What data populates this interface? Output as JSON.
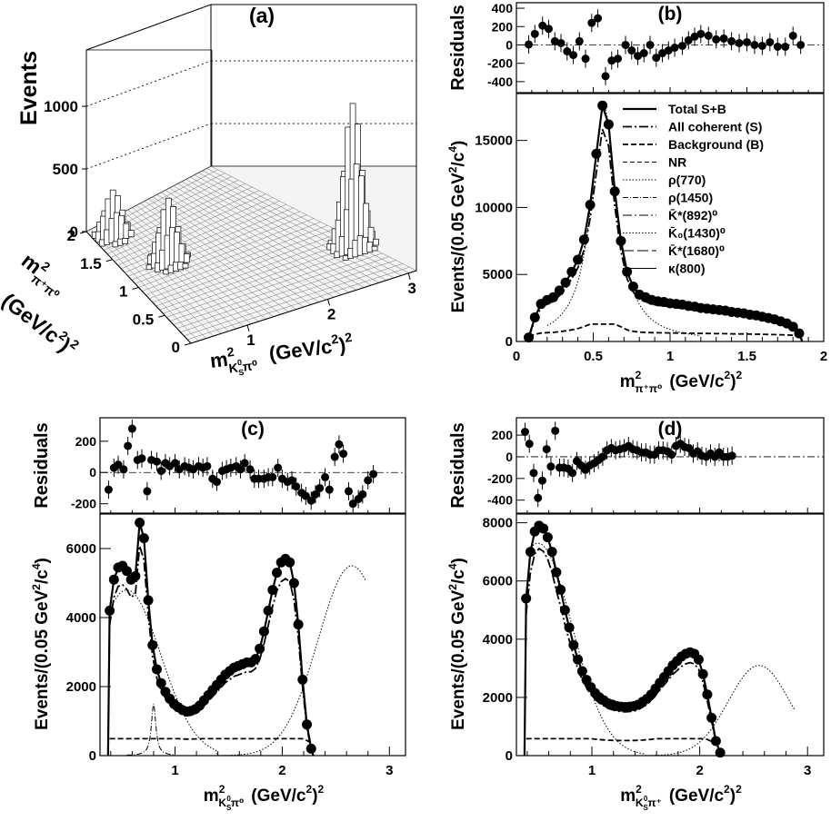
{
  "chart_data": [
    {
      "panel": "a",
      "type": "heatmap",
      "title": "(a)",
      "zlabel": "Events",
      "z_ticks": [
        "0",
        "500",
        "1000"
      ],
      "x_ticks": [
        "1",
        "2",
        "3"
      ],
      "y_ticks": [
        "0",
        "0.5",
        "1",
        "1.5",
        "2"
      ],
      "zlim": [
        0,
        1450
      ],
      "xlim": [
        0.3,
        3.1
      ],
      "ylim": [
        0,
        2
      ],
      "peaks": [
        {
          "x": 2.7,
          "y": 0.6,
          "z": 1150
        },
        {
          "x": 0.8,
          "y": 1.2,
          "z": 520
        },
        {
          "x": 0.5,
          "y": 1.8,
          "z": 380
        }
      ]
    },
    {
      "panel": "b",
      "type": "line",
      "title": "(b)",
      "x_ticks": [
        "0",
        "0.5",
        "1",
        "1.5",
        "2"
      ],
      "xlim": [
        0,
        2
      ],
      "ylim": [
        0,
        18500
      ],
      "y_ticks": [
        "0",
        "5000",
        "10000",
        "15000"
      ],
      "residuals": {
        "ylim": [
          -520,
          460
        ],
        "y_ticks": [
          "-400",
          "-200",
          "0",
          "200",
          "400"
        ],
        "points": [
          [
            0.08,
            5
          ],
          [
            0.12,
            120
          ],
          [
            0.17,
            210
          ],
          [
            0.21,
            175
          ],
          [
            0.25,
            40
          ],
          [
            0.29,
            20
          ],
          [
            0.33,
            -70
          ],
          [
            0.37,
            -110
          ],
          [
            0.41,
            40
          ],
          [
            0.45,
            -150
          ],
          [
            0.49,
            240
          ],
          [
            0.53,
            290
          ],
          [
            0.58,
            -340
          ],
          [
            0.62,
            -170
          ],
          [
            0.66,
            -150
          ],
          [
            0.71,
            0
          ],
          [
            0.75,
            -60
          ],
          [
            0.79,
            -120
          ],
          [
            0.83,
            -90
          ],
          [
            0.87,
            0
          ],
          [
            0.91,
            -140
          ],
          [
            0.95,
            -90
          ],
          [
            0.99,
            -60
          ],
          [
            1.03,
            -30
          ],
          [
            1.08,
            -10
          ],
          [
            1.12,
            50
          ],
          [
            1.16,
            90
          ],
          [
            1.2,
            120
          ],
          [
            1.25,
            100
          ],
          [
            1.3,
            60
          ],
          [
            1.35,
            70
          ],
          [
            1.4,
            40
          ],
          [
            1.45,
            20
          ],
          [
            1.5,
            30
          ],
          [
            1.55,
            0
          ],
          [
            1.6,
            -10
          ],
          [
            1.65,
            30
          ],
          [
            1.7,
            -20
          ],
          [
            1.75,
            -20
          ],
          [
            1.8,
            100
          ],
          [
            1.85,
            0
          ]
        ]
      },
      "points": [
        [
          0.08,
          300
        ],
        [
          0.12,
          1800
        ],
        [
          0.16,
          2800
        ],
        [
          0.2,
          3100
        ],
        [
          0.24,
          3300
        ],
        [
          0.28,
          3800
        ],
        [
          0.32,
          4400
        ],
        [
          0.36,
          5200
        ],
        [
          0.4,
          6100
        ],
        [
          0.44,
          7600
        ],
        [
          0.48,
          10200
        ],
        [
          0.52,
          14000
        ],
        [
          0.56,
          17600
        ],
        [
          0.6,
          16200
        ],
        [
          0.64,
          11200
        ],
        [
          0.68,
          7500
        ],
        [
          0.72,
          5200
        ],
        [
          0.76,
          4100
        ],
        [
          0.8,
          3500
        ],
        [
          0.84,
          3300
        ],
        [
          0.88,
          3100
        ],
        [
          0.92,
          3000
        ],
        [
          0.96,
          2950
        ],
        [
          1.0,
          2850
        ],
        [
          1.04,
          2800
        ],
        [
          1.08,
          2750
        ],
        [
          1.12,
          2650
        ],
        [
          1.16,
          2600
        ],
        [
          1.2,
          2500
        ],
        [
          1.24,
          2450
        ],
        [
          1.28,
          2400
        ],
        [
          1.32,
          2350
        ],
        [
          1.36,
          2300
        ],
        [
          1.4,
          2200
        ],
        [
          1.44,
          2150
        ],
        [
          1.48,
          2100
        ],
        [
          1.52,
          2000
        ],
        [
          1.56,
          1950
        ],
        [
          1.6,
          1850
        ],
        [
          1.64,
          1750
        ],
        [
          1.68,
          1650
        ],
        [
          1.72,
          1500
        ],
        [
          1.76,
          1350
        ],
        [
          1.8,
          1100
        ],
        [
          1.84,
          600
        ]
      ],
      "legend": [
        "Total S+B",
        "All coherent (S)",
        "Background (B)",
        "NR",
        "ρ(770)",
        "ρ(1450)",
        "K̄*(892)⁰",
        "K̄₀(1430)⁰",
        "K̄*(1680)⁰",
        "κ(800)"
      ]
    },
    {
      "panel": "c",
      "type": "line",
      "title": "(c)",
      "x_ticks": [
        "1",
        "2",
        "3"
      ],
      "xlim": [
        0.3,
        3.15
      ],
      "ylim": [
        0,
        7000
      ],
      "y_ticks": [
        "0",
        "2000",
        "4000",
        "6000"
      ],
      "residuals": {
        "ylim": [
          -260,
          350
        ],
        "y_ticks": [
          "-200",
          "0",
          "200"
        ],
        "points": [
          [
            0.38,
            -110
          ],
          [
            0.43,
            30
          ],
          [
            0.47,
            50
          ],
          [
            0.52,
            20
          ],
          [
            0.56,
            170
          ],
          [
            0.6,
            280
          ],
          [
            0.65,
            80
          ],
          [
            0.69,
            90
          ],
          [
            0.74,
            -120
          ],
          [
            0.78,
            80
          ],
          [
            0.83,
            70
          ],
          [
            0.87,
            10
          ],
          [
            0.91,
            60
          ],
          [
            0.95,
            40
          ],
          [
            1.0,
            60
          ],
          [
            1.04,
            20
          ],
          [
            1.09,
            40
          ],
          [
            1.13,
            30
          ],
          [
            1.17,
            20
          ],
          [
            1.22,
            40
          ],
          [
            1.26,
            30
          ],
          [
            1.3,
            40
          ],
          [
            1.35,
            -40
          ],
          [
            1.39,
            -60
          ],
          [
            1.44,
            10
          ],
          [
            1.48,
            20
          ],
          [
            1.52,
            30
          ],
          [
            1.57,
            40
          ],
          [
            1.61,
            20
          ],
          [
            1.65,
            60
          ],
          [
            1.7,
            20
          ],
          [
            1.74,
            -40
          ],
          [
            1.78,
            -40
          ],
          [
            1.83,
            -40
          ],
          [
            1.87,
            -30
          ],
          [
            1.91,
            -30
          ],
          [
            1.96,
            30
          ],
          [
            2.0,
            -40
          ],
          [
            2.05,
            -60
          ],
          [
            2.09,
            -50
          ],
          [
            2.13,
            -90
          ],
          [
            2.18,
            -130
          ],
          [
            2.22,
            -150
          ],
          [
            2.27,
            -180
          ],
          [
            2.31,
            -140
          ],
          [
            2.35,
            -100
          ],
          [
            2.4,
            -30
          ],
          [
            2.44,
            -110
          ],
          [
            2.49,
            100
          ],
          [
            2.53,
            180
          ],
          [
            2.57,
            120
          ],
          [
            2.62,
            -120
          ],
          [
            2.66,
            -200
          ],
          [
            2.71,
            -170
          ],
          [
            2.75,
            -140
          ],
          [
            2.8,
            -50
          ],
          [
            2.85,
            -10
          ]
        ]
      },
      "points": [
        [
          0.39,
          4200
        ],
        [
          0.43,
          5100
        ],
        [
          0.47,
          5450
        ],
        [
          0.51,
          5500
        ],
        [
          0.55,
          5350
        ],
        [
          0.59,
          5100
        ],
        [
          0.63,
          5200
        ],
        [
          0.67,
          6750
        ],
        [
          0.71,
          6300
        ],
        [
          0.75,
          4500
        ],
        [
          0.79,
          3200
        ],
        [
          0.83,
          2500
        ],
        [
          0.87,
          2100
        ],
        [
          0.91,
          1850
        ],
        [
          0.95,
          1650
        ],
        [
          0.99,
          1500
        ],
        [
          1.03,
          1400
        ],
        [
          1.07,
          1320
        ],
        [
          1.11,
          1280
        ],
        [
          1.15,
          1300
        ],
        [
          1.19,
          1350
        ],
        [
          1.23,
          1450
        ],
        [
          1.27,
          1600
        ],
        [
          1.31,
          1750
        ],
        [
          1.35,
          1900
        ],
        [
          1.39,
          2050
        ],
        [
          1.43,
          2200
        ],
        [
          1.47,
          2350
        ],
        [
          1.51,
          2450
        ],
        [
          1.55,
          2550
        ],
        [
          1.59,
          2600
        ],
        [
          1.63,
          2650
        ],
        [
          1.67,
          2700
        ],
        [
          1.71,
          2700
        ],
        [
          1.75,
          2800
        ],
        [
          1.79,
          3100
        ],
        [
          1.83,
          3600
        ],
        [
          1.87,
          4200
        ],
        [
          1.91,
          4800
        ],
        [
          1.95,
          5300
        ],
        [
          1.99,
          5600
        ],
        [
          2.03,
          5700
        ],
        [
          2.07,
          5600
        ],
        [
          2.11,
          5000
        ],
        [
          2.15,
          3800
        ],
        [
          2.19,
          2200
        ],
        [
          2.23,
          900
        ],
        [
          2.27,
          200
        ]
      ]
    },
    {
      "panel": "d",
      "type": "line",
      "title": "(d)",
      "x_ticks": [
        "1",
        "2",
        "3"
      ],
      "xlim": [
        0.3,
        3.15
      ],
      "ylim": [
        0,
        8300
      ],
      "y_ticks": [
        "0",
        "2000",
        "4000",
        "6000",
        "8000"
      ],
      "residuals": {
        "ylim": [
          -520,
          360
        ],
        "y_ticks": [
          "-400",
          "-200",
          "0",
          "200"
        ],
        "points": [
          [
            0.38,
            230
          ],
          [
            0.42,
            120
          ],
          [
            0.46,
            -150
          ],
          [
            0.5,
            -380
          ],
          [
            0.54,
            -220
          ],
          [
            0.58,
            70
          ],
          [
            0.62,
            -90
          ],
          [
            0.66,
            240
          ],
          [
            0.7,
            -100
          ],
          [
            0.74,
            -100
          ],
          [
            0.78,
            -110
          ],
          [
            0.82,
            -150
          ],
          [
            0.86,
            -40
          ],
          [
            0.9,
            -80
          ],
          [
            0.94,
            -120
          ],
          [
            0.98,
            -80
          ],
          [
            1.02,
            -60
          ],
          [
            1.06,
            -30
          ],
          [
            1.1,
            0
          ],
          [
            1.14,
            60
          ],
          [
            1.18,
            80
          ],
          [
            1.22,
            60
          ],
          [
            1.26,
            70
          ],
          [
            1.3,
            80
          ],
          [
            1.34,
            100
          ],
          [
            1.38,
            70
          ],
          [
            1.42,
            60
          ],
          [
            1.46,
            40
          ],
          [
            1.5,
            40
          ],
          [
            1.54,
            20
          ],
          [
            1.58,
            20
          ],
          [
            1.62,
            60
          ],
          [
            1.66,
            60
          ],
          [
            1.7,
            50
          ],
          [
            1.74,
            20
          ],
          [
            1.78,
            100
          ],
          [
            1.82,
            120
          ],
          [
            1.86,
            90
          ],
          [
            1.9,
            80
          ],
          [
            1.94,
            30
          ],
          [
            1.98,
            50
          ],
          [
            2.02,
            10
          ],
          [
            2.06,
            0
          ],
          [
            2.1,
            30
          ],
          [
            2.14,
            0
          ],
          [
            2.18,
            40
          ],
          [
            2.22,
            0
          ],
          [
            2.26,
            0
          ],
          [
            2.3,
            10
          ]
        ]
      },
      "points": [
        [
          0.39,
          5400
        ],
        [
          0.43,
          7000
        ],
        [
          0.47,
          7700
        ],
        [
          0.51,
          7900
        ],
        [
          0.55,
          7800
        ],
        [
          0.59,
          7500
        ],
        [
          0.63,
          7000
        ],
        [
          0.67,
          6300
        ],
        [
          0.71,
          5700
        ],
        [
          0.75,
          5000
        ],
        [
          0.79,
          4400
        ],
        [
          0.83,
          3800
        ],
        [
          0.87,
          3300
        ],
        [
          0.91,
          2900
        ],
        [
          0.95,
          2600
        ],
        [
          0.99,
          2350
        ],
        [
          1.03,
          2150
        ],
        [
          1.07,
          2000
        ],
        [
          1.11,
          1900
        ],
        [
          1.15,
          1800
        ],
        [
          1.19,
          1750
        ],
        [
          1.23,
          1700
        ],
        [
          1.27,
          1680
        ],
        [
          1.31,
          1670
        ],
        [
          1.35,
          1680
        ],
        [
          1.39,
          1700
        ],
        [
          1.43,
          1750
        ],
        [
          1.47,
          1850
        ],
        [
          1.51,
          1950
        ],
        [
          1.55,
          2100
        ],
        [
          1.59,
          2300
        ],
        [
          1.63,
          2500
        ],
        [
          1.67,
          2700
        ],
        [
          1.71,
          2900
        ],
        [
          1.75,
          3100
        ],
        [
          1.79,
          3250
        ],
        [
          1.83,
          3400
        ],
        [
          1.87,
          3500
        ],
        [
          1.91,
          3550
        ],
        [
          1.95,
          3500
        ],
        [
          1.99,
          3300
        ],
        [
          2.03,
          2800
        ],
        [
          2.07,
          2100
        ],
        [
          2.11,
          1300
        ],
        [
          2.15,
          500
        ],
        [
          2.19,
          100
        ]
      ]
    }
  ],
  "labels": {
    "events": "Events",
    "residuals": "Residuals",
    "ylabel_pre": "Events/(0.05 GeV",
    "ylabel_post": "/c",
    "ylabel_sup2": "2",
    "ylabel_sup4": "4",
    "ylabel_close": ")",
    "m": "m",
    "sup2": "2",
    "pipi0_sub": "π⁺π⁰",
    "ksp0_sub": "K",
    "ksp0_sub2": "π⁰",
    "kspp_sub2": "π⁺",
    "ks_sub_s": "S",
    "ks_sup_0": "0",
    "unit": "(GeV/c",
    "unit_close": ")",
    "unit_sup2": "2"
  }
}
